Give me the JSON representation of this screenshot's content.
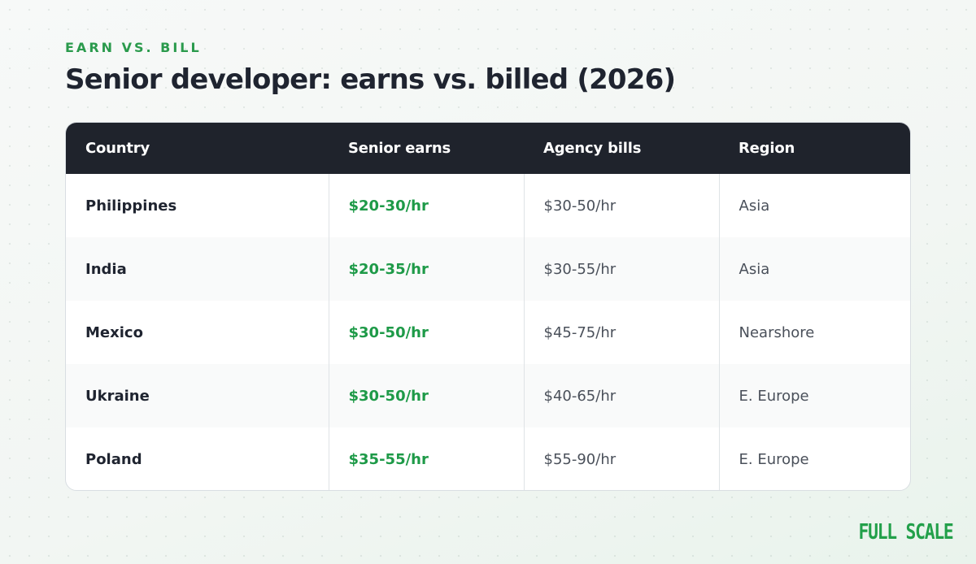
{
  "header": {
    "eyebrow": "EARN VS. BILL",
    "title": "Senior developer: earns vs. billed (2026)"
  },
  "table": {
    "columns": [
      "Country",
      "Senior earns",
      "Agency bills",
      "Region"
    ],
    "rows": [
      {
        "country": "Philippines",
        "earns": "$20-30/hr",
        "bills": "$30-50/hr",
        "region": "Asia"
      },
      {
        "country": "India",
        "earns": "$20-35/hr",
        "bills": "$30-55/hr",
        "region": "Asia"
      },
      {
        "country": "Mexico",
        "earns": "$30-50/hr",
        "bills": "$45-75/hr",
        "region": "Nearshore"
      },
      {
        "country": "Ukraine",
        "earns": "$30-50/hr",
        "bills": "$40-65/hr",
        "region": "E. Europe"
      },
      {
        "country": "Poland",
        "earns": "$35-55/hr",
        "bills": "$55-90/hr",
        "region": "E. Europe"
      }
    ]
  },
  "brand": {
    "name": "FULL SCALE"
  },
  "colors": {
    "accent": "#1e9a48",
    "header_bg": "#1f232c",
    "text": "#1f2430"
  }
}
